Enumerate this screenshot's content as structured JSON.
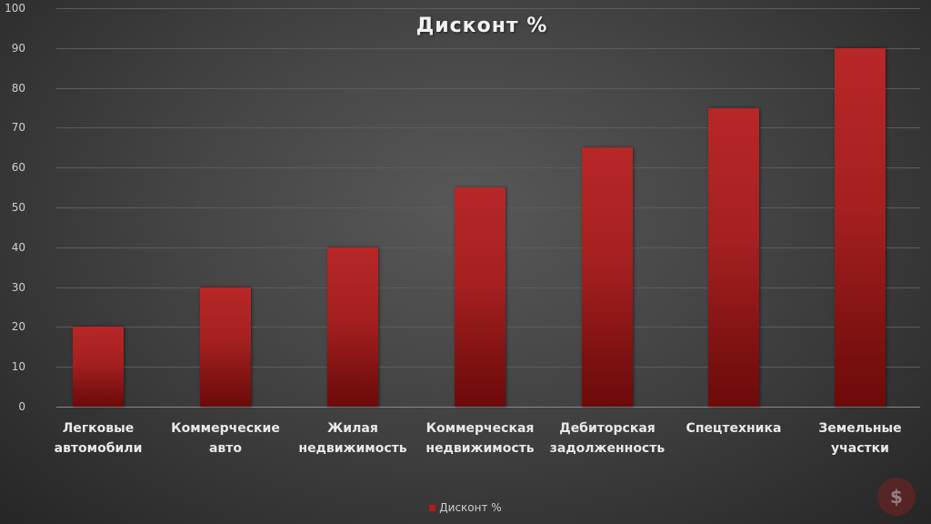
{
  "chart_data": {
    "type": "bar",
    "title": "Дисконт %",
    "categories": [
      "Легковые автомобили",
      "Коммерческие авто",
      "Жилая недвижимость",
      "Коммерческая недвижимость",
      "Дебиторская задолженность",
      "Спецтехника",
      "Земельные участки"
    ],
    "category_lines": [
      [
        "Легковые",
        "автомобили"
      ],
      [
        "Коммерческие",
        "авто"
      ],
      [
        "Жилая",
        "недвижимость"
      ],
      [
        "Коммерческая",
        "недвижимость"
      ],
      [
        "Дебиторская",
        "задолженность"
      ],
      [
        "Спецтехника",
        ""
      ],
      [
        "Земельные",
        "участки"
      ]
    ],
    "series": [
      {
        "name": "Дисконт %",
        "values": [
          20,
          30,
          40,
          55,
          65,
          75,
          90
        ],
        "color": "#b01c1c"
      }
    ],
    "xlabel": "",
    "ylabel": "",
    "ylim": [
      0,
      100
    ],
    "yticks": [
      0,
      10,
      20,
      30,
      40,
      50,
      60,
      70,
      80,
      90,
      100
    ],
    "grid": true,
    "legend_position": "bottom"
  },
  "legend": {
    "label": "Дисконт %"
  },
  "watermark": {
    "glyph": "$"
  }
}
